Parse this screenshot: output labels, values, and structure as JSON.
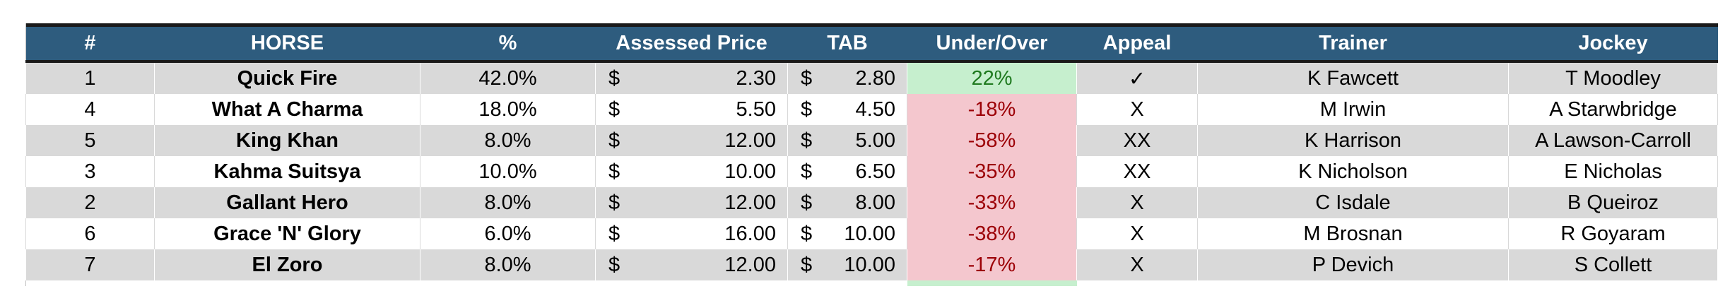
{
  "headers": [
    "#",
    "HORSE",
    "%",
    "Assessed Price",
    "TAB",
    "Under/Over",
    "Appeal",
    "Trainer",
    "Jockey"
  ],
  "currency_symbol": "$",
  "colors": {
    "header_bg": "#2e5c7e",
    "positive_bg": "#c6efce",
    "negative_bg": "#f4c7ce",
    "stripe": "#d9d9d9"
  },
  "rows": [
    {
      "num": "1",
      "horse": "Quick Fire",
      "pct": "42.0%",
      "assessed": "2.30",
      "tab": "2.80",
      "under_over": "22%",
      "sign": "pos",
      "appeal": "✓",
      "trainer": "K Fawcett",
      "jockey": "T Moodley"
    },
    {
      "num": "4",
      "horse": "What A Charma",
      "pct": "18.0%",
      "assessed": "5.50",
      "tab": "4.50",
      "under_over": "-18%",
      "sign": "neg",
      "appeal": "X",
      "trainer": "M Irwin",
      "jockey": "A Starwbridge"
    },
    {
      "num": "5",
      "horse": "King Khan",
      "pct": "8.0%",
      "assessed": "12.00",
      "tab": "5.00",
      "under_over": "-58%",
      "sign": "neg",
      "appeal": "XX",
      "trainer": "K Harrison",
      "jockey": "A Lawson-Carroll"
    },
    {
      "num": "3",
      "horse": "Kahma Suitsya",
      "pct": "10.0%",
      "assessed": "10.00",
      "tab": "6.50",
      "under_over": "-35%",
      "sign": "neg",
      "appeal": "XX",
      "trainer": "K Nicholson",
      "jockey": "E Nicholas"
    },
    {
      "num": "2",
      "horse": "Gallant Hero",
      "pct": "8.0%",
      "assessed": "12.00",
      "tab": "8.00",
      "under_over": "-33%",
      "sign": "neg",
      "appeal": "X",
      "trainer": "C Isdale",
      "jockey": "B Queiroz"
    },
    {
      "num": "6",
      "horse": "Grace 'N' Glory",
      "pct": "6.0%",
      "assessed": "16.00",
      "tab": "10.00",
      "under_over": "-38%",
      "sign": "neg",
      "appeal": "X",
      "trainer": "M Brosnan",
      "jockey": "R Goyaram"
    },
    {
      "num": "7",
      "horse": "El Zoro",
      "pct": "8.0%",
      "assessed": "12.00",
      "tab": "10.00",
      "under_over": "-17%",
      "sign": "neg",
      "appeal": "X",
      "trainer": "P Devich",
      "jockey": "S Collett"
    }
  ]
}
